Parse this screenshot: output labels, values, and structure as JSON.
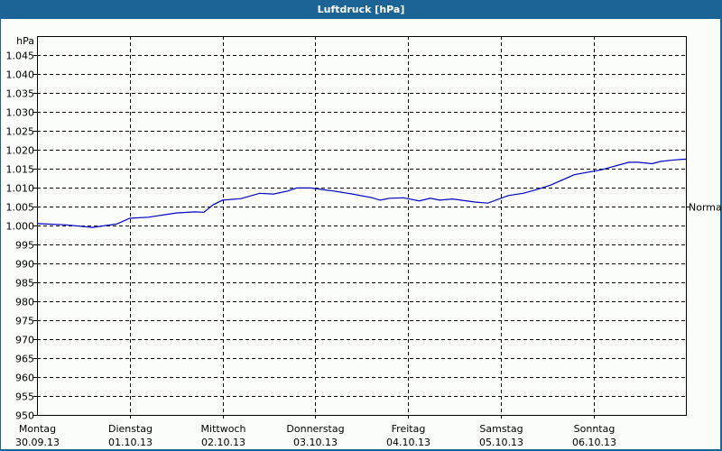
{
  "window": {
    "title": "Luftdruck [hPa]"
  },
  "colors": {
    "titlebar": "#1c6496",
    "background": "#fbfdfb",
    "line": "#0000c0",
    "grid": "#000000"
  },
  "chart_data": {
    "type": "line",
    "title": "Luftdruck [hPa]",
    "ylabel": "hPa",
    "xlabel": "",
    "ylim": [
      950,
      1050
    ],
    "yticks": [
      950,
      955,
      960,
      965,
      970,
      975,
      980,
      985,
      990,
      995,
      1000,
      1005,
      1010,
      1015,
      1020,
      1025,
      1030,
      1035,
      1040,
      1045
    ],
    "ytick_labels": [
      "950",
      "955",
      "960",
      "965",
      "970",
      "975",
      "980",
      "985",
      "990",
      "995",
      "1.000",
      "1.005",
      "1.010",
      "1.015",
      "1.020",
      "1.025",
      "1.030",
      "1.035",
      "1.040",
      "1.045"
    ],
    "x_categories": [
      {
        "day": "Montag",
        "date": "30.09.13"
      },
      {
        "day": "Dienstag",
        "date": "01.10.13"
      },
      {
        "day": "Mittwoch",
        "date": "02.10.13"
      },
      {
        "day": "Donnerstag",
        "date": "03.10.13"
      },
      {
        "day": "Freitag",
        "date": "04.10.13"
      },
      {
        "day": "Samstag",
        "date": "05.10.13"
      },
      {
        "day": "Sonntag",
        "date": "06.10.13"
      }
    ],
    "annotation": {
      "label": "Normal",
      "value": 1005
    },
    "grid": true,
    "series": [
      {
        "name": "Luftdruck",
        "x_days": [
          0,
          0.3,
          0.6,
          0.86,
          1.0,
          1.2,
          1.5,
          1.7,
          1.8,
          1.9,
          2.0,
          2.2,
          2.4,
          2.55,
          2.7,
          2.8,
          2.95,
          3.1,
          3.2,
          3.4,
          3.6,
          3.7,
          3.8,
          3.95,
          4.12,
          4.24,
          4.34,
          4.48,
          4.72,
          4.86,
          5.08,
          5.24,
          5.39,
          5.54,
          5.79,
          6.08,
          6.38,
          6.48,
          6.63,
          6.72,
          6.87,
          6.97,
          7.0
        ],
        "values": [
          1000.5,
          1000.2,
          999.5,
          1000.4,
          1001.9,
          1002.2,
          1003.3,
          1003.6,
          1003.5,
          1005.5,
          1006.7,
          1007.1,
          1008.5,
          1008.3,
          1009.1,
          1009.9,
          1009.9,
          1009.4,
          1009.1,
          1008.3,
          1007.4,
          1006.7,
          1007.2,
          1007.3,
          1006.5,
          1007.2,
          1006.7,
          1007.0,
          1006.2,
          1005.9,
          1007.9,
          1008.5,
          1009.5,
          1010.7,
          1013.4,
          1014.7,
          1016.7,
          1016.7,
          1016.3,
          1016.9,
          1017.3,
          1017.5,
          1017.5
        ]
      }
    ]
  }
}
